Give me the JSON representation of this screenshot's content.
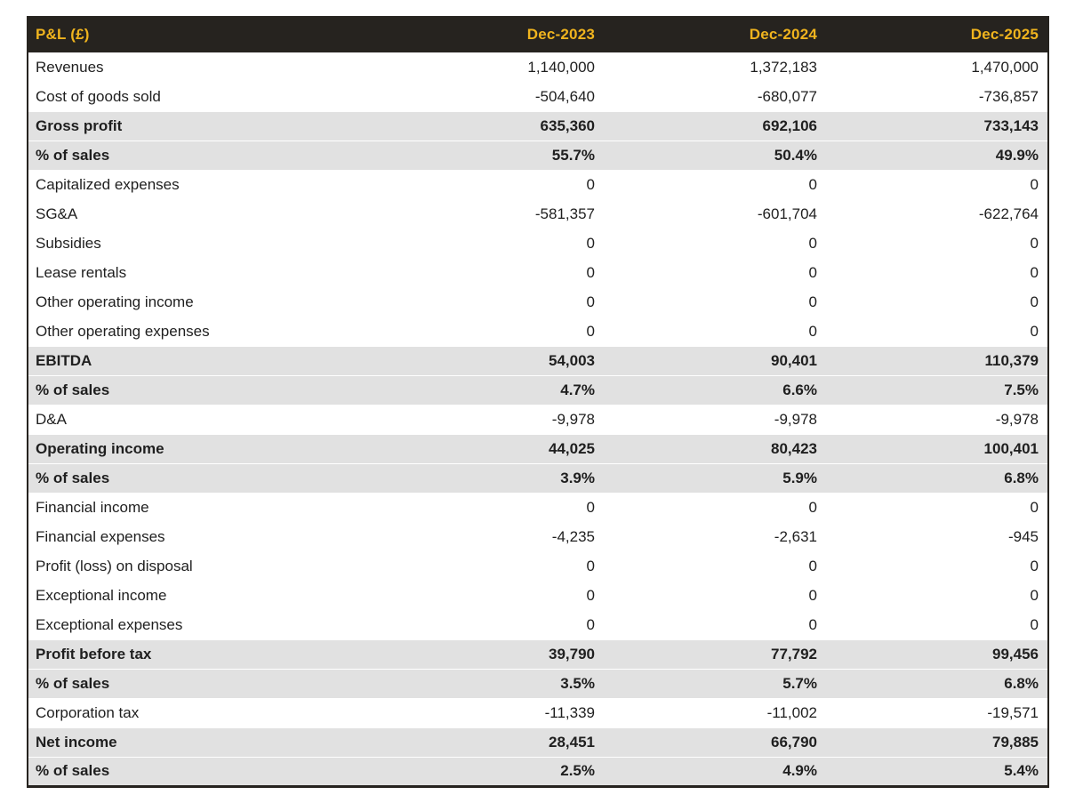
{
  "chart_data": {
    "type": "table",
    "title": "P&L (£)",
    "columns": [
      "Dec-2023",
      "Dec-2024",
      "Dec-2025"
    ],
    "rows": [
      {
        "label": "Revenues",
        "values": [
          "1,140,000",
          "1,372,183",
          "1,470,000"
        ],
        "emphasis": false
      },
      {
        "label": "Cost of goods sold",
        "values": [
          "-504,640",
          "-680,077",
          "-736,857"
        ],
        "emphasis": false
      },
      {
        "label": "Gross profit",
        "values": [
          "635,360",
          "692,106",
          "733,143"
        ],
        "emphasis": true
      },
      {
        "label": "% of sales",
        "values": [
          "55.7%",
          "50.4%",
          "49.9%"
        ],
        "emphasis": true
      },
      {
        "label": "Capitalized expenses",
        "values": [
          "0",
          "0",
          "0"
        ],
        "emphasis": false
      },
      {
        "label": "SG&A",
        "values": [
          "-581,357",
          "-601,704",
          "-622,764"
        ],
        "emphasis": false
      },
      {
        "label": "Subsidies",
        "values": [
          "0",
          "0",
          "0"
        ],
        "emphasis": false
      },
      {
        "label": "Lease rentals",
        "values": [
          "0",
          "0",
          "0"
        ],
        "emphasis": false
      },
      {
        "label": "Other operating income",
        "values": [
          "0",
          "0",
          "0"
        ],
        "emphasis": false
      },
      {
        "label": "Other operating expenses",
        "values": [
          "0",
          "0",
          "0"
        ],
        "emphasis": false
      },
      {
        "label": "EBITDA",
        "values": [
          "54,003",
          "90,401",
          "110,379"
        ],
        "emphasis": true
      },
      {
        "label": "% of sales",
        "values": [
          "4.7%",
          "6.6%",
          "7.5%"
        ],
        "emphasis": true
      },
      {
        "label": "D&A",
        "values": [
          "-9,978",
          "-9,978",
          "-9,978"
        ],
        "emphasis": false
      },
      {
        "label": "Operating income",
        "values": [
          "44,025",
          "80,423",
          "100,401"
        ],
        "emphasis": true
      },
      {
        "label": "% of sales",
        "values": [
          "3.9%",
          "5.9%",
          "6.8%"
        ],
        "emphasis": true
      },
      {
        "label": "Financial income",
        "values": [
          "0",
          "0",
          "0"
        ],
        "emphasis": false
      },
      {
        "label": "Financial expenses",
        "values": [
          "-4,235",
          "-2,631",
          "-945"
        ],
        "emphasis": false
      },
      {
        "label": "Profit (loss) on disposal",
        "values": [
          "0",
          "0",
          "0"
        ],
        "emphasis": false
      },
      {
        "label": "Exceptional income",
        "values": [
          "0",
          "0",
          "0"
        ],
        "emphasis": false
      },
      {
        "label": "Exceptional expenses",
        "values": [
          "0",
          "0",
          "0"
        ],
        "emphasis": false
      },
      {
        "label": "Profit before tax",
        "values": [
          "39,790",
          "77,792",
          "99,456"
        ],
        "emphasis": true
      },
      {
        "label": "% of sales",
        "values": [
          "3.5%",
          "5.7%",
          "6.8%"
        ],
        "emphasis": true
      },
      {
        "label": "Corporation tax",
        "values": [
          "-11,339",
          "-11,002",
          "-19,571"
        ],
        "emphasis": false
      },
      {
        "label": "Net income",
        "values": [
          "28,451",
          "66,790",
          "79,885"
        ],
        "emphasis": true
      },
      {
        "label": "% of sales",
        "values": [
          "2.5%",
          "4.9%",
          "5.4%"
        ],
        "emphasis": true
      }
    ],
    "layout": {
      "legend": "none",
      "grid": "off",
      "value_alignment": "right",
      "emphasis_rows_style": "bold on gray band"
    }
  },
  "colors": {
    "header_bg": "#26231f",
    "header_text": "#f0b41e",
    "band_bg": "#e1e1e1",
    "body_text": "#1f1f1f",
    "border": "#26231f",
    "page_bg": "#ffffff"
  }
}
